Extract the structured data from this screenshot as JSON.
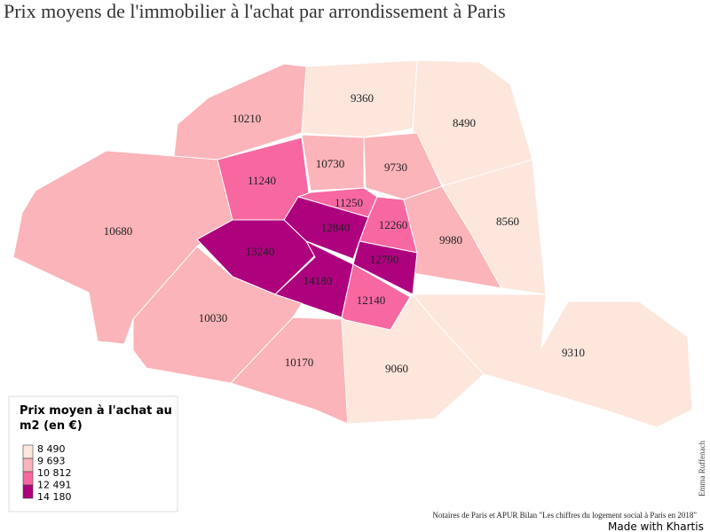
{
  "title": "Prix moyens de l'immobilier à l'achat par arrondissement à Paris",
  "regions": [
    {
      "value": 9360
    },
    {
      "value": 8490
    },
    {
      "value": 10210
    },
    {
      "value": 10730
    },
    {
      "value": 9730
    },
    {
      "value": 11240
    },
    {
      "value": 10680
    },
    {
      "value": 11250
    },
    {
      "value": 12260
    },
    {
      "value": 9980
    },
    {
      "value": 8560
    },
    {
      "value": 12840
    },
    {
      "value": 13240
    },
    {
      "value": 12790
    },
    {
      "value": 14180
    },
    {
      "value": 12140
    },
    {
      "value": 10030
    },
    {
      "value": 10170
    },
    {
      "value": 9060
    },
    {
      "value": 9310
    }
  ],
  "legend": {
    "title": "Prix moyen à l'achat au m2 (en €)",
    "breaks": [
      {
        "value": 8490,
        "label": "8 490"
      },
      {
        "value": 9693,
        "label": "9 693"
      },
      {
        "value": 10812,
        "label": "10 812"
      },
      {
        "value": 12491,
        "label": "12 491"
      },
      {
        "value": 14180,
        "label": "14 180"
      }
    ],
    "colors": [
      "#fde6dc",
      "#fbb4b9",
      "#f768a1",
      "#ae017e"
    ]
  },
  "source": "Notaires de Paris et APUR Bilan \"Les chiffres du logement social à Paris en 2018\"",
  "author": "Emma Ruffenach",
  "made_with": "Made with Khartis"
}
